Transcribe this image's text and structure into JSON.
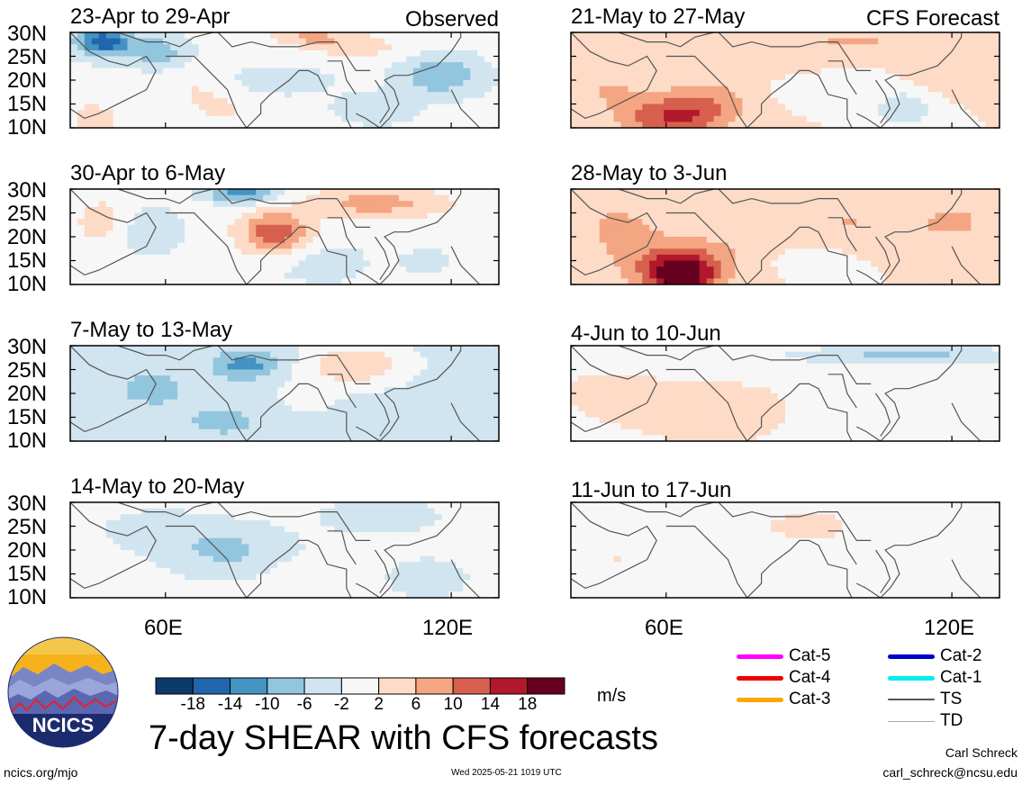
{
  "page": {
    "observed_label": "Observed",
    "forecast_label": "CFS Forecast",
    "main_title": "7-day SHEAR with CFS forecasts",
    "units": "m/s",
    "website": "ncics.org/mjo",
    "timestamp": "Wed 2025-05-21 1019 UTC",
    "author": "Carl Schreck",
    "email": "carl_schreck@ncsu.edu",
    "logo_text": "NCICS"
  },
  "axes": {
    "y_ticks": [
      "30N",
      "25N",
      "20N",
      "15N",
      "10N"
    ],
    "x_ticks": [
      "60E",
      "120E"
    ]
  },
  "colorbar": {
    "labels": [
      "-18",
      "-14",
      "-10",
      "-6",
      "-2",
      "2",
      "6",
      "10",
      "14",
      "18"
    ],
    "colors": [
      "#0b3a6b",
      "#2166ac",
      "#4393c3",
      "#92c5de",
      "#d1e5f0",
      "#f7f7f7",
      "#fddbc7",
      "#f4a582",
      "#d6604d",
      "#b2182b",
      "#67001f"
    ]
  },
  "legend": [
    {
      "label": "Cat-5",
      "color": "#ff00ff",
      "width": 5
    },
    {
      "label": "Cat-4",
      "color": "#ee0000",
      "width": 5
    },
    {
      "label": "Cat-3",
      "color": "#ffa500",
      "width": 5
    },
    {
      "label": "Cat-2",
      "color": "#0000cc",
      "width": 5
    },
    {
      "label": "Cat-1",
      "color": "#00eeee",
      "width": 5
    },
    {
      "label": "TS",
      "color": "#555555",
      "width": 2
    },
    {
      "label": "TD",
      "color": "#aaaaaa",
      "width": 1
    }
  ],
  "chart_data": [
    {
      "type": "heatmap",
      "title": "23-Apr to 29-Apr",
      "group": "Observed",
      "xlim": [
        40,
        130
      ],
      "ylim": [
        10,
        30
      ],
      "base": -1,
      "blobs": [
        [
          47,
          28,
          6,
          3,
          -16
        ],
        [
          58,
          26,
          6,
          3,
          -8
        ],
        [
          90,
          29,
          8,
          2,
          7
        ],
        [
          100,
          27,
          10,
          3,
          5
        ],
        [
          118,
          21,
          8,
          4,
          -9
        ],
        [
          85,
          20,
          10,
          3,
          -3
        ],
        [
          45,
          12,
          5,
          3,
          6
        ],
        [
          72,
          14,
          6,
          3,
          4
        ],
        [
          104,
          14,
          8,
          3,
          -4
        ],
        [
          66,
          18,
          5,
          4,
          3
        ]
      ]
    },
    {
      "type": "heatmap",
      "title": "21-May to 27-May",
      "group": "CFS Forecast",
      "xlim": [
        40,
        130
      ],
      "ylim": [
        10,
        30
      ],
      "base": 2,
      "blobs": [
        [
          60,
          12,
          10,
          4,
          10
        ],
        [
          68,
          15,
          10,
          5,
          7
        ],
        [
          48,
          18,
          8,
          5,
          4
        ],
        [
          110,
          14,
          7,
          4,
          -7
        ],
        [
          92,
          18,
          10,
          3,
          -3
        ],
        [
          78,
          25,
          12,
          4,
          4
        ],
        [
          100,
          28,
          10,
          2,
          5
        ],
        [
          120,
          22,
          8,
          5,
          4
        ]
      ]
    },
    {
      "type": "heatmap",
      "title": "30-Apr to 6-May",
      "group": "Observed",
      "xlim": [
        40,
        130
      ],
      "ylim": [
        10,
        30
      ],
      "base": 0,
      "blobs": [
        [
          83,
          21,
          7,
          4,
          13
        ],
        [
          76,
          29,
          8,
          2,
          -12
        ],
        [
          104,
          27,
          14,
          3,
          8
        ],
        [
          57,
          21,
          7,
          5,
          -6
        ],
        [
          95,
          15,
          8,
          4,
          -4
        ],
        [
          115,
          15,
          8,
          4,
          -3
        ],
        [
          47,
          23,
          6,
          5,
          4
        ],
        [
          90,
          12,
          10,
          2,
          -2
        ]
      ]
    },
    {
      "type": "heatmap",
      "title": "28-May to 3-Jun",
      "group": "CFS Forecast",
      "xlim": [
        40,
        130
      ],
      "ylim": [
        10,
        30
      ],
      "base": 2,
      "blobs": [
        [
          63,
          12,
          7,
          4,
          18
        ],
        [
          62,
          15,
          14,
          6,
          7
        ],
        [
          50,
          22,
          8,
          5,
          5
        ],
        [
          98,
          23,
          10,
          4,
          4
        ],
        [
          120,
          23,
          10,
          4,
          5
        ],
        [
          80,
          19,
          8,
          5,
          2
        ],
        [
          88,
          15,
          7,
          3,
          -3
        ]
      ]
    },
    {
      "type": "heatmap",
      "title": "7-May to 13-May",
      "group": "Observed",
      "xlim": [
        40,
        130
      ],
      "ylim": [
        10,
        30
      ],
      "base": -3,
      "blobs": [
        [
          100,
          26,
          10,
          4,
          9
        ],
        [
          77,
          26,
          7,
          3,
          -9
        ],
        [
          57,
          21,
          10,
          5,
          -4
        ],
        [
          90,
          20,
          6,
          4,
          3
        ],
        [
          72,
          14,
          10,
          4,
          -4
        ],
        [
          120,
          16,
          8,
          5,
          -3
        ]
      ]
    },
    {
      "type": "heatmap",
      "title": "4-Jun to 10-Jun",
      "group": "CFS Forecast",
      "xlim": [
        40,
        130
      ],
      "ylim": [
        10,
        30
      ],
      "base": 1,
      "blobs": [
        [
          110,
          28,
          25,
          2,
          -8
        ],
        [
          70,
          16,
          14,
          5,
          5
        ],
        [
          50,
          20,
          10,
          5,
          3
        ],
        [
          98,
          15,
          10,
          4,
          -3
        ],
        [
          55,
          27,
          8,
          3,
          -2
        ]
      ]
    },
    {
      "type": "heatmap",
      "title": "14-May to 20-May",
      "group": "Observed",
      "xlim": [
        40,
        130
      ],
      "ylim": [
        10,
        30
      ],
      "base": -1,
      "blobs": [
        [
          73,
          20,
          12,
          5,
          -6
        ],
        [
          105,
          27,
          10,
          3,
          -5
        ],
        [
          58,
          24,
          10,
          4,
          -3
        ],
        [
          90,
          15,
          8,
          3,
          2
        ],
        [
          48,
          12,
          6,
          3,
          3
        ],
        [
          115,
          14,
          8,
          4,
          -3
        ]
      ]
    },
    {
      "type": "heatmap",
      "title": "11-Jun to 17-Jun",
      "group": "CFS Forecast",
      "xlim": [
        40,
        130
      ],
      "ylim": [
        10,
        30
      ],
      "base": 0,
      "blobs": [
        [
          90,
          25,
          12,
          4,
          3
        ],
        [
          70,
          14,
          10,
          4,
          2
        ],
        [
          110,
          20,
          8,
          4,
          -2
        ],
        [
          50,
          18,
          6,
          4,
          2
        ]
      ]
    }
  ]
}
